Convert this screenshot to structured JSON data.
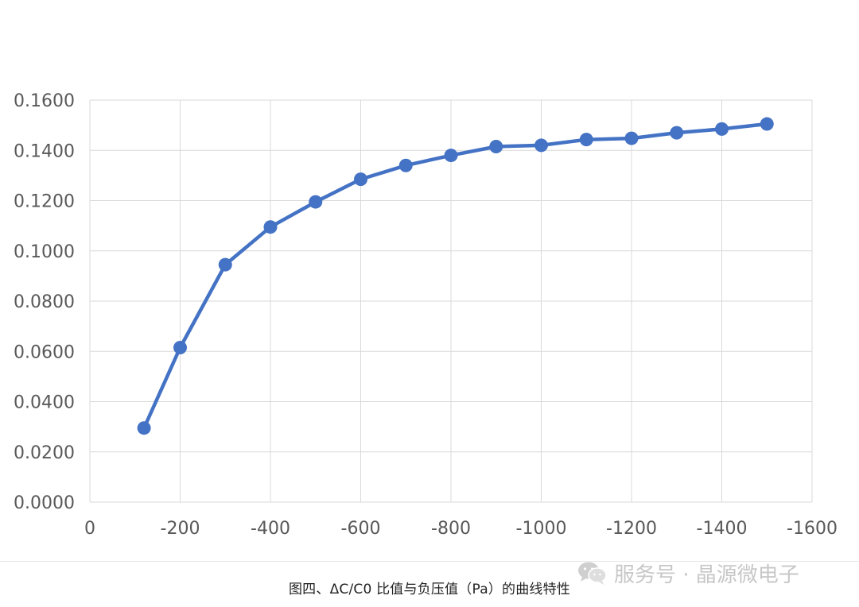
{
  "caption": "图四、ΔC/C0 比值与负压值（Pa）的曲线特性",
  "watermark": {
    "text": "服务号 · 晶源微电子",
    "icon": "wechat-icon"
  },
  "colors": {
    "series": "#4472c4",
    "grid": "#d9d9d9",
    "tick_text": "#595959"
  },
  "chart_data": {
    "type": "line",
    "title": "",
    "xlabel": "",
    "ylabel": "",
    "xlim": [
      0,
      -1600
    ],
    "ylim": [
      0.0,
      0.16
    ],
    "x_ticks": [
      0,
      -200,
      -400,
      -600,
      -800,
      -1000,
      -1200,
      -1400,
      -1600
    ],
    "y_ticks": [
      0.0,
      0.02,
      0.04,
      0.06,
      0.08,
      0.1,
      0.12,
      0.14,
      0.16
    ],
    "x_tick_labels": [
      "0",
      "-200",
      "-400",
      "-600",
      "-800",
      "-1000",
      "-1200",
      "-1400",
      "-1600"
    ],
    "y_tick_labels": [
      "0.0000",
      "0.0200",
      "0.0400",
      "0.0600",
      "0.0800",
      "0.1000",
      "0.1200",
      "0.1400",
      "0.1600"
    ],
    "grid": true,
    "legend": "none",
    "series": [
      {
        "x": [
          -120,
          -200,
          -300,
          -400,
          -500,
          -600,
          -700,
          -800,
          -900,
          -1000,
          -1100,
          -1200,
          -1300,
          -1400,
          -1500
        ],
        "values": [
          0.0295,
          0.0615,
          0.0945,
          0.1095,
          0.1195,
          0.1285,
          0.134,
          0.138,
          0.1415,
          0.142,
          0.1443,
          0.1448,
          0.147,
          0.1485,
          0.1505
        ]
      }
    ]
  }
}
